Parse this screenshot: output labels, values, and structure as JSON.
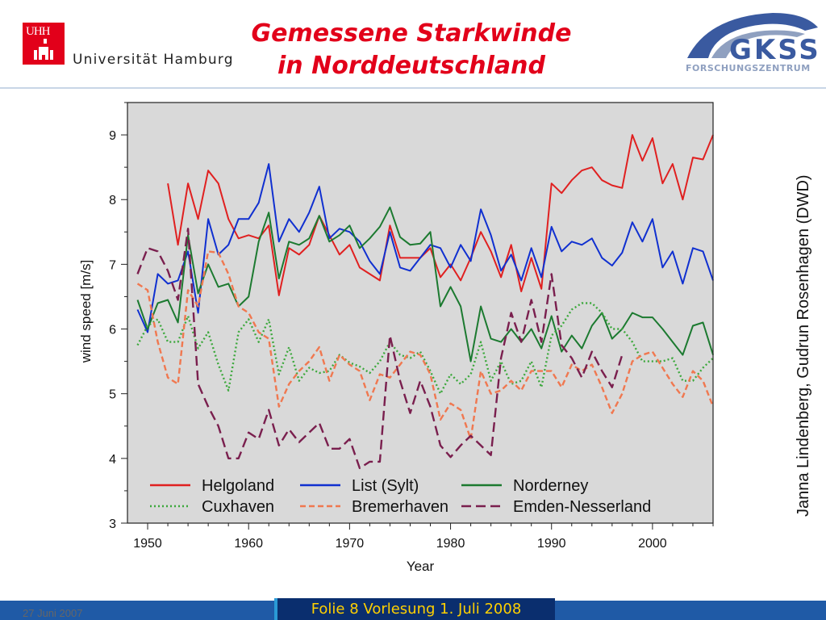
{
  "header": {
    "university_logo_text": "UHH",
    "university_name": "Universität Hamburg",
    "title_line1": "Gemessene Starkwinde",
    "title_line2": "in Norddeutschland",
    "gkss_name": "GKSS",
    "gkss_sub": "FORSCHUNGSZENTRUM"
  },
  "credit": "Janna Lindenberg, Gudrun Rosenhagen (DWD)",
  "footer": {
    "date": "27 Juni 2007",
    "slide": "Folie 8 Vorlesung 1. Juli 2008"
  },
  "colors": {
    "title": "#e2001a",
    "footer_bar": "#1f5aa6",
    "footer_slide_bg": "#0a2e6e",
    "footer_slide_text": "#ffd000",
    "plot_bg": "#d9d9d9"
  },
  "chart_data": {
    "type": "line",
    "title": "",
    "xlabel": "Year",
    "ylabel": "wind speed [m/s]",
    "xlim": [
      1948,
      2006
    ],
    "ylim": [
      3,
      9.5
    ],
    "xticks": [
      1950,
      1960,
      1970,
      1980,
      1990,
      2000
    ],
    "yticks": [
      3,
      4,
      5,
      6,
      7,
      8,
      9
    ],
    "grid": false,
    "legend_position": "bottom-inside",
    "series": [
      {
        "name": "Helgoland",
        "color": "#e02020",
        "dash": "solid",
        "x": [
          1952,
          1953,
          1954,
          1955,
          1956,
          1957,
          1958,
          1959,
          1960,
          1961,
          1962,
          1963,
          1964,
          1965,
          1966,
          1967,
          1968,
          1969,
          1970,
          1971,
          1972,
          1973,
          1974,
          1975,
          1976,
          1977,
          1978,
          1979,
          1980,
          1981,
          1982,
          1983,
          1984,
          1985,
          1986,
          1987,
          1988,
          1989,
          1990,
          1991,
          1992,
          1993,
          1994,
          1995,
          1996,
          1997,
          1998,
          1999,
          2000,
          2001,
          2002,
          2003,
          2004,
          2005,
          2006
        ],
        "values": [
          8.25,
          7.3,
          8.25,
          7.7,
          8.45,
          8.25,
          7.7,
          7.4,
          7.45,
          7.4,
          7.6,
          6.52,
          7.25,
          7.15,
          7.3,
          7.75,
          7.45,
          7.15,
          7.3,
          6.95,
          6.85,
          6.75,
          7.6,
          7.1,
          7.1,
          7.1,
          7.25,
          6.8,
          7.0,
          6.75,
          7.1,
          7.5,
          7.2,
          6.8,
          7.3,
          6.58,
          7.1,
          6.62,
          8.25,
          8.1,
          8.3,
          8.45,
          8.5,
          8.3,
          8.22,
          8.18,
          9.0,
          8.6,
          8.95,
          8.25,
          8.55,
          8.0,
          8.65,
          8.62,
          9.0
        ]
      },
      {
        "name": "List (Sylt)",
        "color": "#1030d0",
        "dash": "solid",
        "x": [
          1949,
          1950,
          1951,
          1952,
          1953,
          1954,
          1955,
          1956,
          1957,
          1958,
          1959,
          1960,
          1961,
          1962,
          1963,
          1964,
          1965,
          1966,
          1967,
          1968,
          1969,
          1970,
          1971,
          1972,
          1973,
          1974,
          1975,
          1976,
          1977,
          1978,
          1979,
          1980,
          1981,
          1982,
          1983,
          1984,
          1985,
          1986,
          1987,
          1988,
          1989,
          1990,
          1991,
          1992,
          1993,
          1994,
          1995,
          1996,
          1997,
          1998,
          1999,
          2000,
          2001,
          2002,
          2003,
          2004,
          2005,
          2006
        ],
        "values": [
          6.3,
          5.95,
          6.85,
          6.7,
          6.75,
          7.2,
          6.25,
          7.7,
          7.15,
          7.3,
          7.7,
          7.7,
          7.95,
          8.55,
          7.35,
          7.7,
          7.5,
          7.8,
          8.2,
          7.4,
          7.55,
          7.5,
          7.35,
          7.05,
          6.85,
          7.5,
          6.95,
          6.9,
          7.1,
          7.3,
          7.25,
          6.95,
          7.3,
          7.05,
          7.85,
          7.45,
          6.9,
          7.15,
          6.75,
          7.25,
          6.8,
          7.58,
          7.2,
          7.35,
          7.3,
          7.4,
          7.1,
          6.98,
          7.18,
          7.65,
          7.35,
          7.7,
          6.95,
          7.2,
          6.7,
          7.25,
          7.2,
          6.75
        ]
      },
      {
        "name": "Norderney",
        "color": "#1c7a30",
        "dash": "solid",
        "x": [
          1949,
          1950,
          1951,
          1952,
          1953,
          1954,
          1955,
          1956,
          1957,
          1958,
          1959,
          1960,
          1961,
          1962,
          1963,
          1964,
          1965,
          1966,
          1967,
          1968,
          1969,
          1970,
          1971,
          1972,
          1973,
          1974,
          1975,
          1976,
          1977,
          1978,
          1979,
          1980,
          1981,
          1982,
          1983,
          1984,
          1985,
          1986,
          1987,
          1988,
          1989,
          1990,
          1991,
          1992,
          1993,
          1994,
          1995,
          1996,
          1997,
          1998,
          1999,
          2000,
          2001,
          2002,
          2003,
          2004,
          2005,
          2006
        ],
        "values": [
          6.45,
          6.0,
          6.4,
          6.45,
          6.1,
          7.45,
          6.55,
          7.0,
          6.65,
          6.7,
          6.35,
          6.5,
          7.35,
          7.8,
          6.78,
          7.35,
          7.3,
          7.4,
          7.75,
          7.35,
          7.45,
          7.6,
          7.25,
          7.4,
          7.58,
          7.88,
          7.42,
          7.3,
          7.32,
          7.5,
          6.35,
          6.65,
          6.35,
          5.5,
          6.35,
          5.85,
          5.8,
          6.0,
          5.8,
          6.0,
          5.7,
          6.2,
          5.65,
          5.9,
          5.7,
          6.05,
          6.25,
          5.85,
          6.0,
          6.25,
          6.18,
          6.18,
          6.0,
          5.8,
          5.6,
          6.05,
          6.1,
          5.6
        ]
      },
      {
        "name": "Cuxhaven",
        "color": "#3ca83c",
        "dash": "dotted",
        "x": [
          1949,
          1950,
          1951,
          1952,
          1953,
          1954,
          1955,
          1956,
          1957,
          1958,
          1959,
          1960,
          1961,
          1962,
          1963,
          1964,
          1965,
          1966,
          1967,
          1968,
          1969,
          1970,
          1971,
          1972,
          1973,
          1974,
          1975,
          1976,
          1977,
          1978,
          1979,
          1980,
          1981,
          1982,
          1983,
          1984,
          1985,
          1986,
          1987,
          1988,
          1989,
          1990,
          1991,
          1992,
          1993,
          1994,
          1995,
          1996,
          1997,
          1998,
          1999,
          2000,
          2001,
          2002,
          2003,
          2004,
          2005,
          2006
        ],
        "values": [
          5.75,
          6.05,
          6.15,
          5.8,
          5.8,
          6.2,
          5.7,
          5.95,
          5.45,
          5.05,
          5.95,
          6.15,
          5.8,
          6.15,
          5.3,
          5.72,
          5.2,
          5.4,
          5.32,
          5.35,
          5.6,
          5.48,
          5.42,
          5.32,
          5.5,
          5.8,
          5.6,
          5.55,
          5.65,
          5.35,
          5.0,
          5.3,
          5.15,
          5.3,
          5.8,
          5.2,
          5.5,
          5.15,
          5.2,
          5.5,
          5.1,
          5.9,
          6.05,
          6.3,
          6.4,
          6.4,
          6.25,
          6.0,
          6.0,
          5.8,
          5.5,
          5.5,
          5.5,
          5.55,
          5.2,
          5.2,
          5.4,
          5.55
        ]
      },
      {
        "name": "Bremerhaven",
        "color": "#f07850",
        "dash": "dashed",
        "x": [
          1949,
          1950,
          1951,
          1952,
          1953,
          1954,
          1955,
          1956,
          1957,
          1958,
          1959,
          1960,
          1961,
          1962,
          1963,
          1964,
          1965,
          1966,
          1967,
          1968,
          1969,
          1970,
          1971,
          1972,
          1973,
          1974,
          1975,
          1976,
          1977,
          1978,
          1979,
          1980,
          1981,
          1982,
          1983,
          1984,
          1985,
          1986,
          1987,
          1988,
          1989,
          1990,
          1991,
          1992,
          1993,
          1994,
          1995,
          1996,
          1997,
          1998,
          1999,
          2000,
          2001,
          2002,
          2003,
          2004,
          2005,
          2006
        ],
        "values": [
          6.7,
          6.6,
          5.8,
          5.25,
          5.15,
          6.6,
          6.35,
          7.2,
          7.18,
          6.85,
          6.35,
          6.25,
          5.95,
          5.85,
          4.8,
          5.15,
          5.35,
          5.5,
          5.72,
          5.2,
          5.6,
          5.45,
          5.35,
          4.9,
          5.3,
          5.25,
          5.45,
          5.65,
          5.6,
          5.3,
          4.6,
          4.85,
          4.75,
          4.3,
          5.35,
          5.0,
          5.05,
          5.2,
          5.05,
          5.35,
          5.35,
          5.35,
          5.1,
          5.45,
          5.35,
          5.45,
          5.1,
          4.7,
          5.0,
          5.5,
          5.6,
          5.65,
          5.4,
          5.15,
          4.95,
          5.35,
          5.2,
          4.8
        ]
      },
      {
        "name": "Emden-Nesserland",
        "color": "#7a1f4e",
        "dash": "longdash",
        "x": [
          1949,
          1950,
          1951,
          1952,
          1953,
          1954,
          1955,
          1956,
          1957,
          1958,
          1959,
          1960,
          1961,
          1962,
          1963,
          1964,
          1965,
          1966,
          1967,
          1968,
          1969,
          1970,
          1971,
          1972,
          1973,
          1974,
          1975,
          1976,
          1977,
          1978,
          1979,
          1980,
          1981,
          1982,
          1983,
          1984,
          1985,
          1986,
          1987,
          1988,
          1989,
          1990,
          1991,
          1992,
          1993,
          1994,
          1995,
          1996,
          1997
        ],
        "values": [
          6.85,
          7.25,
          7.2,
          6.9,
          6.45,
          7.55,
          5.15,
          4.8,
          4.5,
          4.0,
          4.0,
          4.4,
          4.3,
          4.75,
          4.2,
          4.45,
          4.25,
          4.4,
          4.55,
          4.15,
          4.15,
          4.3,
          3.85,
          3.95,
          3.95,
          5.9,
          5.2,
          4.7,
          5.2,
          4.8,
          4.2,
          4.02,
          4.2,
          4.35,
          4.2,
          4.05,
          5.55,
          6.25,
          5.8,
          6.45,
          5.8,
          6.85,
          5.75,
          5.55,
          5.25,
          5.65,
          5.35,
          5.1,
          5.6
        ]
      }
    ]
  }
}
